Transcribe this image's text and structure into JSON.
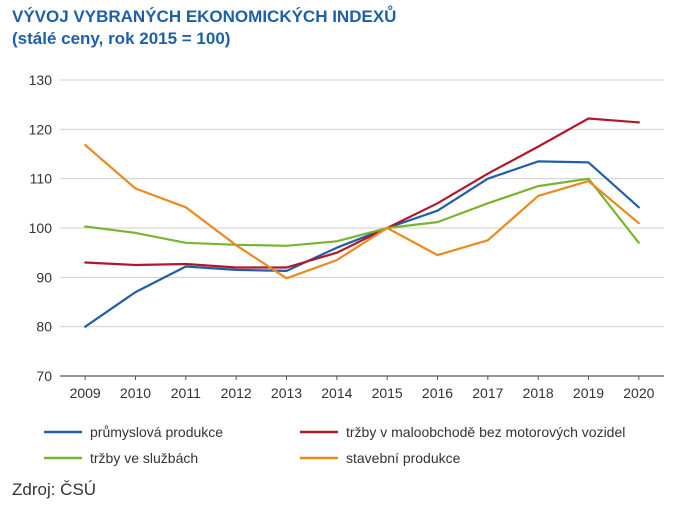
{
  "chart_data": {
    "type": "line",
    "title": "VÝVOJ VYBRANÝCH EKONOMICKÝCH INDEXŮ",
    "subtitle": "(stálé ceny, rok 2015 = 100)",
    "xlabel": "",
    "ylabel": "",
    "x": [
      "2009",
      "2010",
      "2011",
      "2012",
      "2013",
      "2014",
      "2015",
      "2016",
      "2017",
      "2018",
      "2019",
      "2020"
    ],
    "ylim": [
      70,
      130
    ],
    "yticks": [
      70,
      80,
      90,
      100,
      110,
      120,
      130
    ],
    "grid": "horizontal",
    "legend_position": "bottom",
    "series": [
      {
        "name": "průmyslová produkce",
        "color": "#1f5fa8",
        "values": [
          80.0,
          87.0,
          92.2,
          91.5,
          91.3,
          96.0,
          100.0,
          103.5,
          110.0,
          113.5,
          113.3,
          104.2
        ]
      },
      {
        "name": "tržby v maloobchodě bez motorových vozidel",
        "color": "#b0182a",
        "values": [
          93.0,
          92.5,
          92.7,
          92.0,
          92.0,
          95.0,
          100.0,
          105.0,
          111.0,
          116.5,
          122.2,
          121.4
        ]
      },
      {
        "name": "tržby ve službách",
        "color": "#7ab42e",
        "values": [
          100.3,
          99.0,
          97.0,
          96.6,
          96.4,
          97.3,
          100.0,
          101.2,
          105.0,
          108.5,
          110.0,
          97.0
        ]
      },
      {
        "name": "stavební produkce",
        "color": "#ea8a1e",
        "values": [
          116.8,
          108.0,
          104.2,
          96.5,
          89.8,
          93.5,
          100.0,
          94.5,
          97.5,
          106.5,
          109.5,
          101.0
        ]
      }
    ]
  },
  "source": "Zdroj: ČSÚ"
}
